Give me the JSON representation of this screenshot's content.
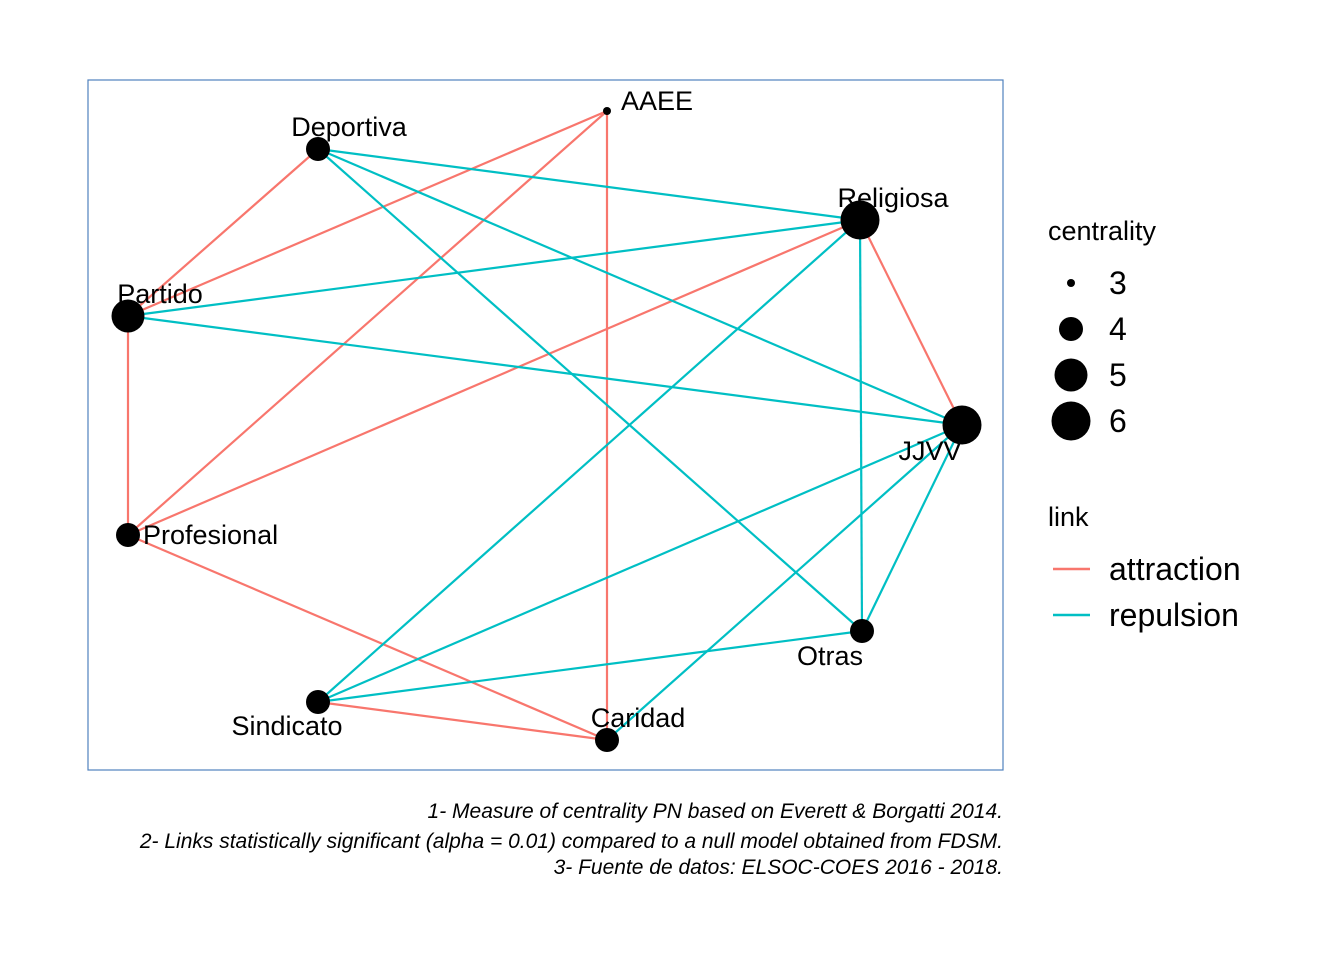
{
  "nodes": [
    {
      "id": "AAEE",
      "label": "AAEE",
      "centrality": 3
    },
    {
      "id": "Deportiva",
      "label": "Deportiva",
      "centrality": 4
    },
    {
      "id": "Religiosa",
      "label": "Religiosa",
      "centrality": 6
    },
    {
      "id": "Partido",
      "label": "Partido",
      "centrality": 5
    },
    {
      "id": "JJVV",
      "label": "JJVV",
      "centrality": 6
    },
    {
      "id": "Profesional",
      "label": "Profesional",
      "centrality": 4
    },
    {
      "id": "Otras",
      "label": "Otras",
      "centrality": 4
    },
    {
      "id": "Sindicato",
      "label": "Sindicato",
      "centrality": 4
    },
    {
      "id": "Caridad",
      "label": "Caridad",
      "centrality": 4
    }
  ],
  "edges": [
    {
      "source": "AAEE",
      "target": "Partido",
      "link": "attraction"
    },
    {
      "source": "AAEE",
      "target": "Profesional",
      "link": "attraction"
    },
    {
      "source": "AAEE",
      "target": "Caridad",
      "link": "attraction"
    },
    {
      "source": "Deportiva",
      "target": "Partido",
      "link": "attraction"
    },
    {
      "source": "Religiosa",
      "target": "Profesional",
      "link": "attraction"
    },
    {
      "source": "Religiosa",
      "target": "JJVV",
      "link": "attraction"
    },
    {
      "source": "Partido",
      "target": "Profesional",
      "link": "attraction"
    },
    {
      "source": "Profesional",
      "target": "Caridad",
      "link": "attraction"
    },
    {
      "source": "Sindicato",
      "target": "Caridad",
      "link": "attraction"
    },
    {
      "source": "Deportiva",
      "target": "Religiosa",
      "link": "repulsion"
    },
    {
      "source": "Deportiva",
      "target": "JJVV",
      "link": "repulsion"
    },
    {
      "source": "Deportiva",
      "target": "Otras",
      "link": "repulsion"
    },
    {
      "source": "Partido",
      "target": "Religiosa",
      "link": "repulsion"
    },
    {
      "source": "Partido",
      "target": "JJVV",
      "link": "repulsion"
    },
    {
      "source": "Religiosa",
      "target": "Sindicato",
      "link": "repulsion"
    },
    {
      "source": "Religiosa",
      "target": "Otras",
      "link": "repulsion"
    },
    {
      "source": "JJVV",
      "target": "Sindicato",
      "link": "repulsion"
    },
    {
      "source": "JJVV",
      "target": "Otras",
      "link": "repulsion"
    },
    {
      "source": "JJVV",
      "target": "Caridad",
      "link": "repulsion"
    },
    {
      "source": "Otras",
      "target": "Sindicato",
      "link": "repulsion"
    }
  ],
  "colors": {
    "attraction": "#F8766D",
    "repulsion": "#00BFC4",
    "panel_border": "#4F81BD",
    "node": "#000000"
  },
  "legend": {
    "centrality": {
      "title": "centrality",
      "items": [
        {
          "value": 3,
          "label": "3"
        },
        {
          "value": 4,
          "label": "4"
        },
        {
          "value": 5,
          "label": "5"
        },
        {
          "value": 6,
          "label": "6"
        }
      ]
    },
    "link": {
      "title": "link",
      "items": [
        {
          "key": "attraction",
          "label": "attraction"
        },
        {
          "key": "repulsion",
          "label": "repulsion"
        }
      ]
    }
  },
  "caption": {
    "line1": "1- Measure of centrality PN based on Everett & Borgatti 2014.",
    "line2": "2- Links statistically significant (alpha = 0.01) compared to a null model obtained from FDSM.",
    "line3": "3- Fuente de datos: ELSOC-COES 2016 - 2018."
  }
}
